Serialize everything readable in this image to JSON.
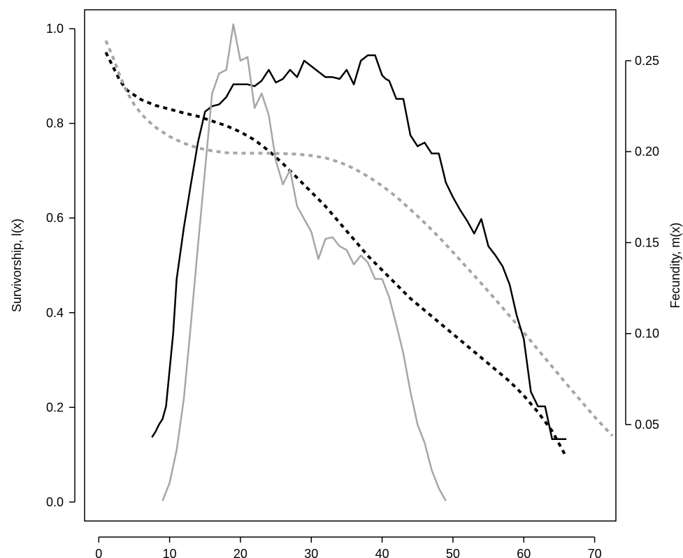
{
  "chart_data": {
    "type": "line",
    "title": "",
    "xlabel": "",
    "ylabel_left": "Survivorship, l(x)",
    "ylabel_right": "Fecundity, m(x)",
    "xlim": [
      -2,
      73
    ],
    "ylim_left": [
      -0.04,
      1.04
    ],
    "ylim_right": [
      -0.003,
      0.278
    ],
    "x_ticks": [
      0,
      10,
      20,
      30,
      40,
      50,
      60,
      70
    ],
    "y_left_ticks": [
      "0.0",
      "0.2",
      "0.4",
      "0.6",
      "0.8",
      "1.0"
    ],
    "y_right_ticks": [
      "0.05",
      "0.10",
      "0.15",
      "0.20",
      "0.25"
    ],
    "grid": false,
    "legend": "none",
    "series": [
      {
        "axis": "left",
        "style": "dashed",
        "color": "#000000",
        "x": [
          1,
          2,
          3,
          4,
          5,
          6,
          8,
          10,
          12,
          14,
          16,
          18,
          20,
          22,
          24,
          26,
          28,
          30,
          32,
          34,
          36,
          38,
          40,
          42,
          44,
          46,
          48,
          50,
          52,
          54,
          56,
          58,
          60,
          62,
          64,
          66
        ],
        "y": [
          0.95,
          0.92,
          0.89,
          0.87,
          0.86,
          0.85,
          0.838,
          0.83,
          0.822,
          0.815,
          0.805,
          0.795,
          0.782,
          0.765,
          0.742,
          0.715,
          0.685,
          0.655,
          0.625,
          0.59,
          0.555,
          0.52,
          0.49,
          0.46,
          0.43,
          0.405,
          0.38,
          0.355,
          0.33,
          0.305,
          0.28,
          0.255,
          0.225,
          0.19,
          0.15,
          0.095
        ]
      },
      {
        "axis": "left",
        "style": "dashed",
        "color": "#a6a6a6",
        "x": [
          1,
          2,
          3,
          4,
          5,
          6,
          7,
          8,
          9,
          10,
          12,
          14,
          16,
          18,
          20,
          22,
          24,
          26,
          28,
          30,
          32,
          34,
          36,
          38,
          40,
          42,
          44,
          46,
          48,
          50,
          52,
          54,
          56,
          58,
          60,
          62,
          64,
          66,
          68,
          70,
          72.5
        ],
        "y": [
          0.975,
          0.94,
          0.9,
          0.865,
          0.84,
          0.82,
          0.805,
          0.792,
          0.782,
          0.772,
          0.758,
          0.748,
          0.742,
          0.738,
          0.737,
          0.737,
          0.737,
          0.736,
          0.735,
          0.732,
          0.727,
          0.718,
          0.705,
          0.688,
          0.668,
          0.645,
          0.618,
          0.59,
          0.56,
          0.528,
          0.495,
          0.462,
          0.428,
          0.393,
          0.358,
          0.322,
          0.286,
          0.25,
          0.215,
          0.18,
          0.14
        ]
      },
      {
        "axis": "right",
        "style": "solid",
        "color": "#000000",
        "x": [
          7.5,
          8,
          8.5,
          9,
          9.5,
          10,
          10.5,
          11,
          12,
          13,
          14,
          15,
          16,
          17,
          18,
          19,
          20,
          21,
          22,
          23,
          24,
          25,
          26,
          27,
          28,
          29,
          30,
          31,
          32,
          33,
          34,
          35,
          36,
          37,
          38,
          39,
          40,
          40.5,
          41,
          42,
          43,
          44,
          45,
          46,
          47,
          48,
          49,
          50,
          51,
          52,
          53,
          54,
          55,
          56,
          57,
          58,
          59,
          60,
          61,
          62,
          63,
          64,
          65,
          66
        ],
        "y": [
          0.043,
          0.046,
          0.05,
          0.053,
          0.06,
          0.08,
          0.1,
          0.13,
          0.158,
          0.182,
          0.205,
          0.222,
          0.225,
          0.226,
          0.23,
          0.237,
          0.237,
          0.237,
          0.236,
          0.239,
          0.245,
          0.238,
          0.24,
          0.245,
          0.241,
          0.25,
          0.247,
          0.244,
          0.241,
          0.241,
          0.24,
          0.245,
          0.237,
          0.25,
          0.253,
          0.253,
          0.242,
          0.24,
          0.239,
          0.229,
          0.229,
          0.209,
          0.203,
          0.205,
          0.199,
          0.199,
          0.183,
          0.175,
          0.168,
          0.162,
          0.155,
          0.163,
          0.148,
          0.143,
          0.137,
          0.127,
          0.11,
          0.097,
          0.068,
          0.06,
          0.06,
          0.042,
          0.042,
          0.042
        ]
      },
      {
        "axis": "right",
        "style": "solid",
        "color": "#a6a6a6",
        "x": [
          9,
          10,
          11,
          12,
          13,
          14,
          15,
          16,
          17,
          18,
          19,
          20,
          21,
          22,
          23,
          24,
          25,
          26,
          27,
          28,
          29,
          30,
          31,
          32,
          33,
          34,
          35,
          36,
          37,
          38,
          39,
          40,
          41,
          42,
          43,
          44,
          45,
          46,
          47,
          48,
          49
        ],
        "y": [
          0.008,
          0.018,
          0.036,
          0.064,
          0.105,
          0.148,
          0.19,
          0.232,
          0.243,
          0.245,
          0.27,
          0.25,
          0.252,
          0.224,
          0.232,
          0.22,
          0.195,
          0.182,
          0.19,
          0.17,
          0.163,
          0.156,
          0.141,
          0.152,
          0.153,
          0.148,
          0.146,
          0.138,
          0.143,
          0.139,
          0.13,
          0.13,
          0.12,
          0.105,
          0.089,
          0.068,
          0.05,
          0.04,
          0.025,
          0.015,
          0.008
        ]
      }
    ]
  }
}
